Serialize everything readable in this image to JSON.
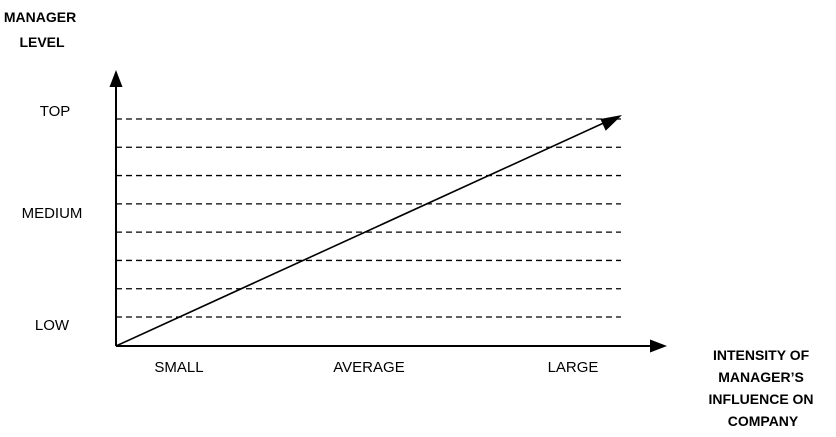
{
  "y_axis": {
    "title_lines": [
      "MANAGER",
      "LEVEL"
    ],
    "labels": [
      "TOP",
      "MEDIUM",
      "LOW"
    ]
  },
  "x_axis": {
    "title_lines": [
      "INTENSITY OF",
      "MANAGER’S",
      "INFLUENCE ON",
      "COMPANY"
    ],
    "labels": [
      "SMALL",
      "AVERAGE",
      "LARGE"
    ]
  },
  "grid": {
    "style": "dashed",
    "line_count": 8
  },
  "trend": {
    "direction": "rising",
    "from": "LOW / SMALL",
    "to": "TOP / LARGE"
  },
  "colors": {
    "ink": "#000000",
    "background": "#ffffff"
  }
}
